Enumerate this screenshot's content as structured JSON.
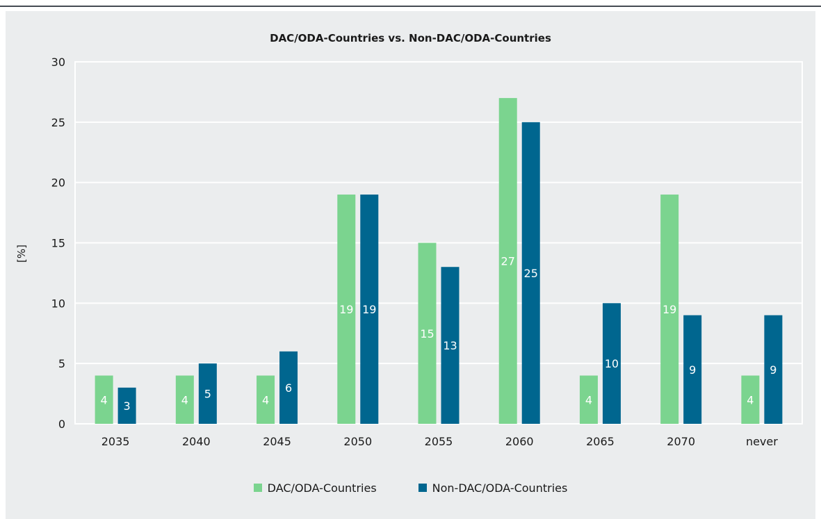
{
  "chart_data": {
    "type": "bar",
    "title": "DAC/ODA-Countries vs. Non-DAC/ODA-Countries",
    "ylabel": "[%]",
    "xlabel": "",
    "categories": [
      "2035",
      "2040",
      "2045",
      "2050",
      "2055",
      "2060",
      "2065",
      "2070",
      "never"
    ],
    "ylim": [
      0,
      30
    ],
    "yticks": [
      0,
      5,
      10,
      15,
      20,
      25,
      30
    ],
    "grid": true,
    "legend_position": "bottom",
    "series": [
      {
        "name": "DAC/ODA-Countries",
        "color": "#7bd48f",
        "values": [
          4,
          4,
          4,
          19,
          15,
          27,
          4,
          19,
          4
        ],
        "labels": [
          "4",
          "4",
          "4",
          "19",
          "15",
          "27",
          "4",
          "19",
          "4"
        ]
      },
      {
        "name": "Non-DAC/ODA-Countries",
        "color": "#00668f",
        "values": [
          3,
          5,
          6,
          19,
          13,
          25,
          10,
          9,
          9
        ],
        "labels": [
          "3",
          "5",
          "6",
          "19",
          "13",
          "25",
          "10",
          "9",
          "9"
        ]
      }
    ]
  }
}
